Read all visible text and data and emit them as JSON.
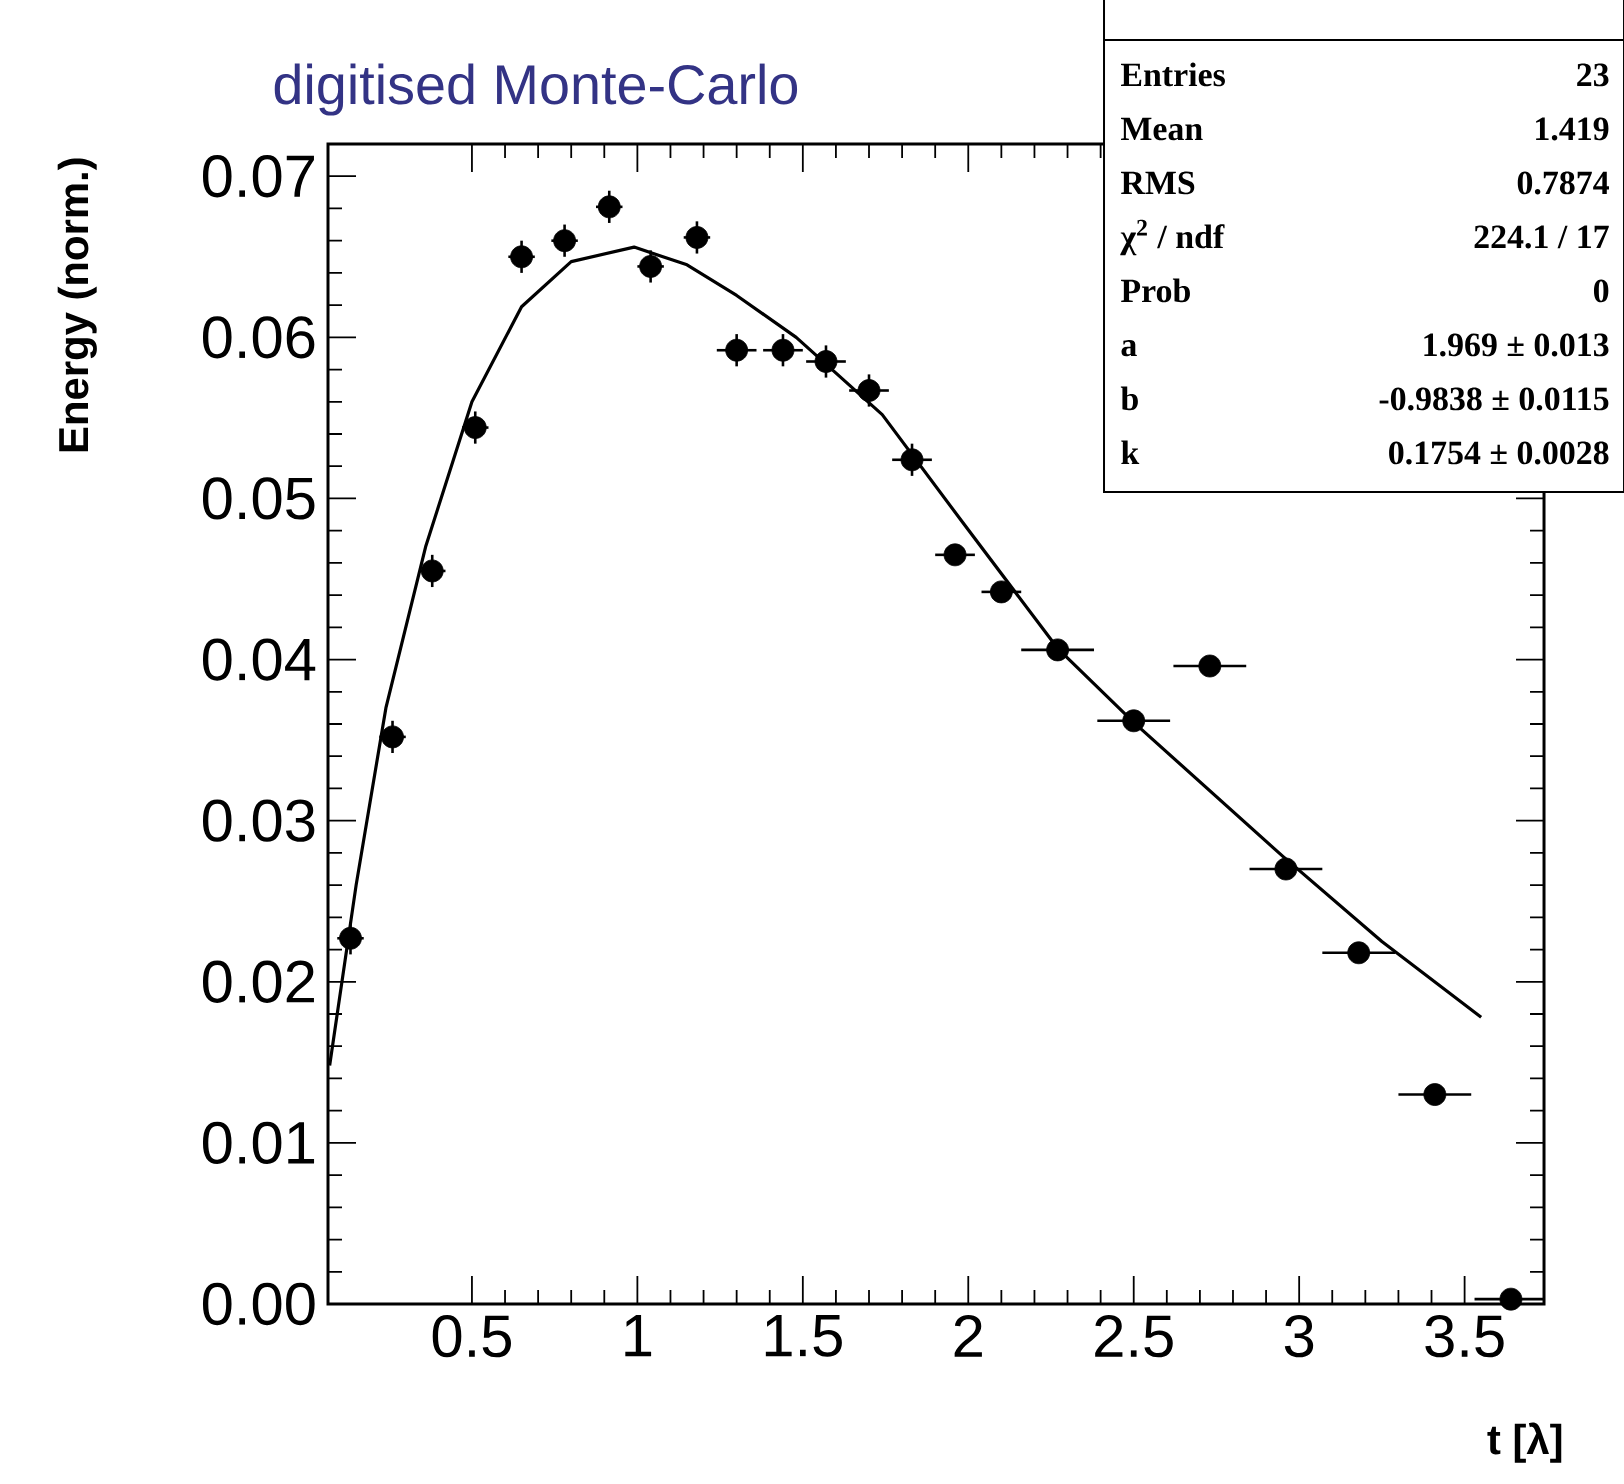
{
  "chart_data": {
    "type": "scatter",
    "title": "digitised Monte-Carlo",
    "xlabel": "t [λ]",
    "ylabel": "Energy (norm.)",
    "xlim": [
      0.065,
      3.74
    ],
    "ylim": [
      0,
      0.072
    ],
    "xticks": [
      0.5,
      1,
      1.5,
      2,
      2.5,
      3,
      3.5
    ],
    "yticks": [
      {
        "value": 0,
        "label": "0.00"
      },
      {
        "value": 0.01,
        "label": "0.01"
      },
      {
        "value": 0.02,
        "label": "0.02"
      },
      {
        "value": 0.03,
        "label": "0.03"
      },
      {
        "value": 0.04,
        "label": "0.04"
      },
      {
        "value": 0.05,
        "label": "0.05"
      },
      {
        "value": 0.06,
        "label": "0.06"
      },
      {
        "value": 0.07,
        "label": "0.07"
      }
    ],
    "series": [
      {
        "type": "scatter",
        "color": "#000000",
        "x": [
          0.133,
          0.26,
          0.38,
          0.51,
          0.65,
          0.78,
          0.915,
          1.04,
          1.18,
          1.3,
          1.44,
          1.57,
          1.7,
          1.83,
          1.96,
          2.1,
          2.27,
          2.5,
          2.73,
          2.96,
          3.18,
          3.41,
          3.64
        ],
        "values": [
          0.0227,
          0.0352,
          0.0455,
          0.0544,
          0.065,
          0.066,
          0.0681,
          0.0644,
          0.0662,
          0.0592,
          0.0592,
          0.0585,
          0.0567,
          0.0524,
          0.0465,
          0.0442,
          0.0406,
          0.0362,
          0.0396,
          0.027,
          0.0218,
          0.013,
          0.0003
        ],
        "errors": [
          0.001,
          0.001,
          0.001,
          0.001,
          0.001,
          0.001,
          0.001,
          0.001,
          0.001,
          0.001,
          0.001,
          0.001,
          0.001,
          0.001,
          null,
          null,
          null,
          null,
          null,
          null,
          null,
          null,
          null
        ],
        "xerrors": [
          0.04,
          0.04,
          0.04,
          0.04,
          0.04,
          0.04,
          0.04,
          0.04,
          0.04,
          0.06,
          0.06,
          0.06,
          0.06,
          0.06,
          0.06,
          0.06,
          0.11,
          0.11,
          0.11,
          0.11,
          0.11,
          0.11,
          0.11
        ]
      },
      {
        "type": "line",
        "color": "#000000",
        "x": [
          0.07,
          0.15,
          0.24,
          0.36,
          0.5,
          0.65,
          0.8,
          0.99,
          1.15,
          1.3,
          1.48,
          1.74,
          1.98,
          2.27,
          2.5,
          2.95,
          3.25,
          3.55
        ],
        "values": [
          0.0148,
          0.026,
          0.037,
          0.047,
          0.056,
          0.0619,
          0.0647,
          0.0656,
          0.0645,
          0.0626,
          0.06,
          0.0552,
          0.0486,
          0.0407,
          0.0361,
          0.0278,
          0.0225,
          0.0178
        ]
      }
    ],
    "annotations": [
      "Entries",
      "23",
      "Mean",
      "1.419",
      "RMS",
      "0.7874",
      "χ$^{2}$ / ndf",
      "224.1 / 17",
      "Prob",
      "0",
      "a",
      "1.969 ± 0.013",
      "b",
      "-0.9838 ± 0.0115",
      "k",
      "0.1754 ± 0.0028"
    ]
  }
}
